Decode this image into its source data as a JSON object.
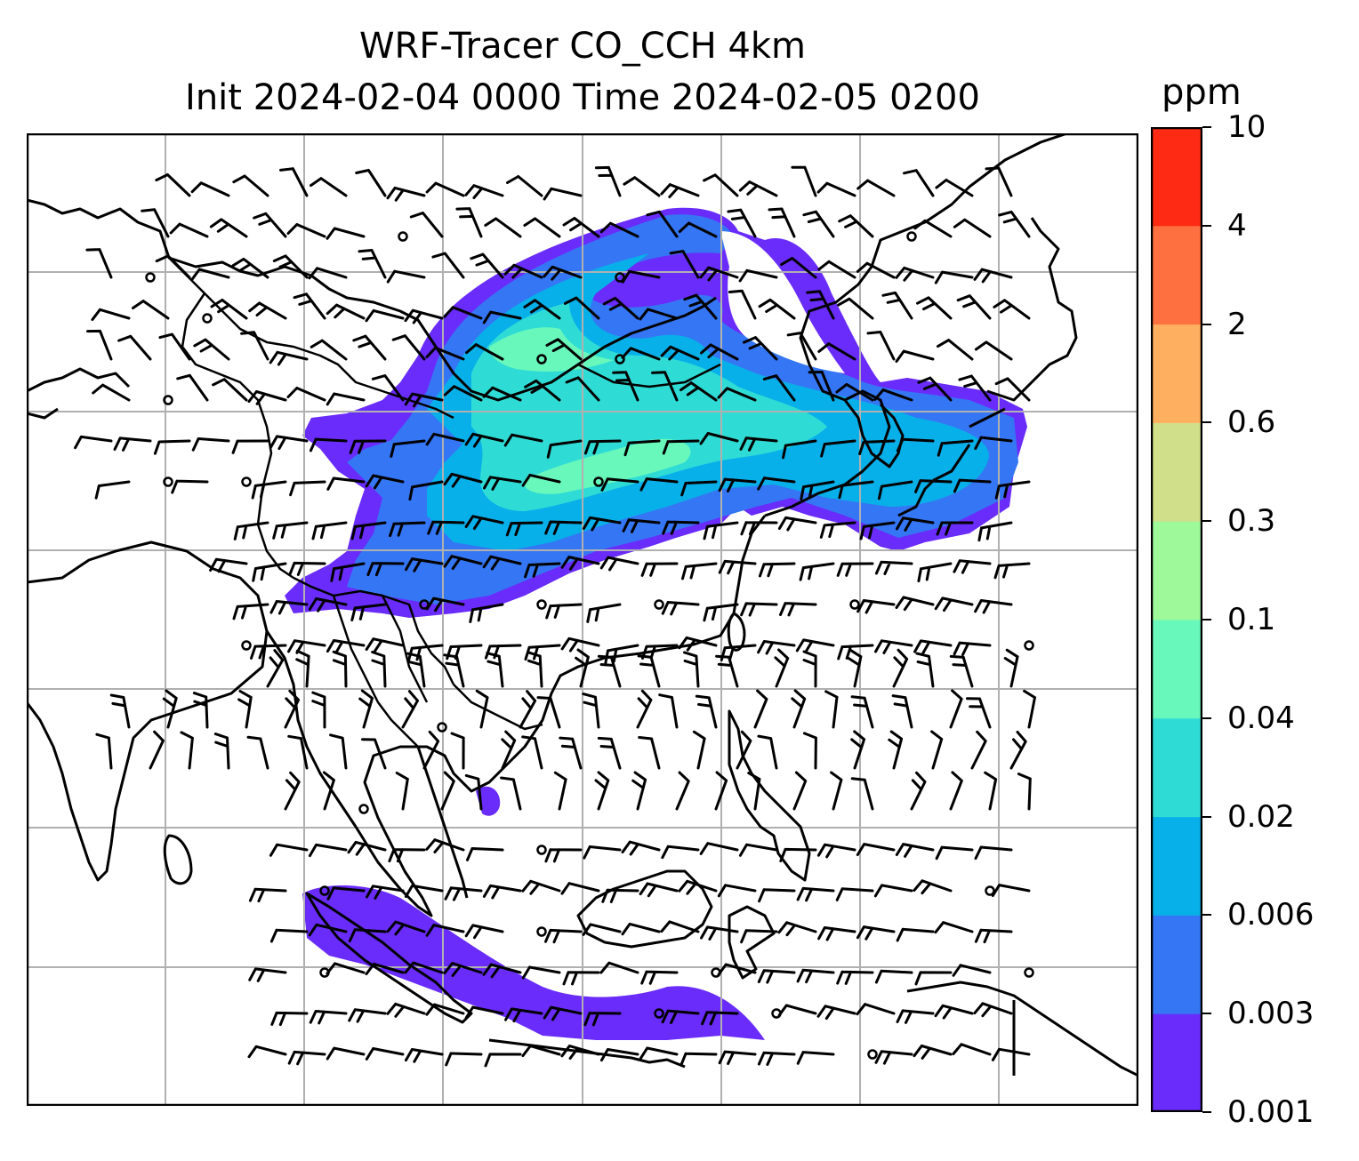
{
  "title": {
    "line1": "WRF-Tracer CO_CCH 4km",
    "line2": "Init 2024-02-04 0000 Time 2024-02-05 0200"
  },
  "colorbar": {
    "unit": "ppm",
    "levels": [
      "0.001",
      "0.003",
      "0.006",
      "0.02",
      "0.04",
      "0.1",
      "0.3",
      "0.6",
      "2",
      "4",
      "10"
    ],
    "colors": [
      "#6a2cfa",
      "#3576f4",
      "#08b0e9",
      "#2fdcd5",
      "#68f8bc",
      "#9df99a",
      "#d0e08a",
      "#ffaf60",
      "#ff7040",
      "#ff2a14"
    ]
  },
  "map": {
    "gridlines": true,
    "features": [
      "coastlines",
      "country-borders",
      "wind-barbs",
      "tracer-plumes"
    ]
  }
}
